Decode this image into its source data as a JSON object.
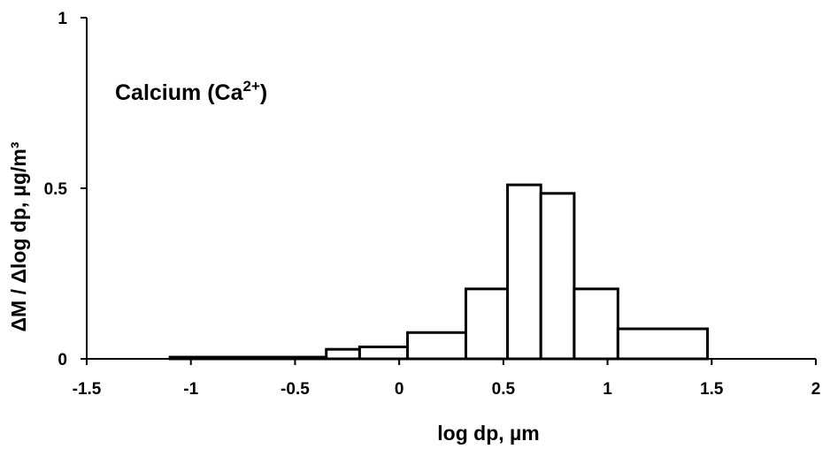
{
  "chart_data": {
    "type": "histogram",
    "title": "",
    "xlabel": "log dp, µm",
    "ylabel": "ΔM / Δlog dp, µg/m³",
    "xlim": [
      -1.5,
      2
    ],
    "ylim": [
      0,
      1
    ],
    "xticks": [
      -1.5,
      -1,
      -0.5,
      0,
      0.5,
      1,
      1.5,
      2
    ],
    "yticks": [
      0,
      0.5,
      1
    ],
    "xtick_labels": [
      "-1.5",
      "-1",
      "-0.5",
      "0",
      "0.5",
      "1",
      "1.5",
      "2"
    ],
    "ytick_labels": [
      "0",
      "0.5",
      "1"
    ],
    "grid": false,
    "annotation": {
      "text": "Calcium (Ca",
      "superscript": "2+",
      "suffix": ")"
    },
    "bins": [
      {
        "x0": -1.1,
        "x1": -0.35,
        "value": 0.005
      },
      {
        "x0": -0.35,
        "x1": -0.19,
        "value": 0.028
      },
      {
        "x0": -0.19,
        "x1": 0.04,
        "value": 0.035
      },
      {
        "x0": 0.04,
        "x1": 0.32,
        "value": 0.077
      },
      {
        "x0": 0.32,
        "x1": 0.52,
        "value": 0.205
      },
      {
        "x0": 0.52,
        "x1": 0.68,
        "value": 0.51
      },
      {
        "x0": 0.68,
        "x1": 0.84,
        "value": 0.485
      },
      {
        "x0": 0.84,
        "x1": 1.05,
        "value": 0.205
      },
      {
        "x0": 1.05,
        "x1": 1.48,
        "value": 0.088
      }
    ]
  }
}
